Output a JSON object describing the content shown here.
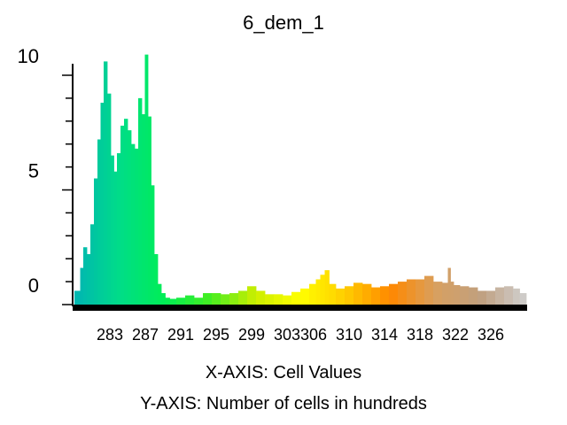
{
  "chart_data": {
    "type": "bar",
    "title": "6_dem_1",
    "xlabel": "X-AXIS: Cell Values",
    "ylabel": "Y-AXIS: Number of cells in hundreds",
    "x_range": [
      279,
      330
    ],
    "ylim": [
      0,
      10.5
    ],
    "y_ticks": [
      {
        "value": 0,
        "label": "0"
      },
      {
        "value": 5,
        "label": "5"
      },
      {
        "value": 10,
        "label": "10"
      }
    ],
    "x_ticks": [
      {
        "value": 283,
        "label": "283"
      },
      {
        "value": 287,
        "label": "287"
      },
      {
        "value": 291,
        "label": "291"
      },
      {
        "value": 295,
        "label": "295"
      },
      {
        "value": 299,
        "label": "299"
      },
      {
        "value": 303,
        "label": "303"
      },
      {
        "value": 306,
        "label": "306"
      },
      {
        "value": 310,
        "label": "310"
      },
      {
        "value": 314,
        "label": "314"
      },
      {
        "value": 318,
        "label": "318"
      },
      {
        "value": 322,
        "label": "322"
      },
      {
        "value": 326,
        "label": "326"
      }
    ],
    "grid": false,
    "legend": "none",
    "color_ramp": [
      "#00b4b4",
      "#00dd88",
      "#00ee55",
      "#44ee22",
      "#ccee00",
      "#ffff00",
      "#ffcc00",
      "#ff8800",
      "#d8a060",
      "#c0a080",
      "#d0d0d0"
    ],
    "x": [
      279.5,
      279.8,
      280.2,
      280.6,
      281.0,
      281.4,
      281.8,
      282.1,
      282.5,
      282.9,
      283.3,
      283.6,
      284.0,
      284.4,
      284.8,
      285.2,
      285.6,
      286.0,
      286.4,
      286.8,
      287.1,
      287.5,
      287.8,
      288.2,
      288.6,
      289.0,
      289.5,
      290.0,
      291.0,
      292.0,
      293.0,
      294.0,
      295.0,
      296.0,
      297.0,
      298.0,
      299.0,
      300.0,
      301.0,
      302.0,
      303.0,
      304.0,
      305.0,
      306.0,
      306.5,
      307.0,
      307.5,
      308.0,
      309.0,
      310.0,
      311.0,
      312.0,
      313.0,
      314.0,
      315.0,
      316.0,
      317.0,
      318.0,
      319.0,
      320.0,
      321.0,
      321.3,
      321.6,
      322.0,
      323.0,
      324.0,
      325.0,
      326.0,
      327.0,
      328.0,
      329.0,
      329.5
    ],
    "values": [
      0.6,
      1.6,
      2.5,
      2.2,
      3.5,
      5.5,
      7.2,
      8.8,
      10.6,
      9.2,
      6.5,
      5.8,
      6.6,
      7.8,
      8.1,
      7.6,
      7.0,
      6.8,
      9.0,
      8.3,
      10.9,
      8.2,
      5.2,
      2.2,
      0.9,
      0.5,
      0.3,
      0.25,
      0.3,
      0.4,
      0.3,
      0.5,
      0.5,
      0.45,
      0.5,
      0.6,
      0.8,
      0.6,
      0.45,
      0.45,
      0.4,
      0.55,
      0.7,
      0.9,
      1.1,
      1.3,
      1.5,
      0.9,
      0.7,
      0.8,
      0.95,
      0.9,
      0.75,
      0.8,
      0.9,
      1.0,
      1.1,
      1.1,
      1.25,
      1.0,
      0.95,
      1.6,
      1.0,
      0.85,
      0.8,
      0.75,
      0.6,
      0.6,
      0.75,
      0.8,
      0.7,
      0.5
    ]
  }
}
